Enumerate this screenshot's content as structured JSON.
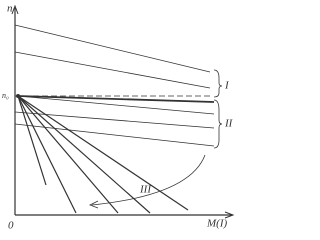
{
  "axis": {
    "y_label": "n",
    "x_label": "M(I)",
    "origin": "0",
    "n0_label": "n₀"
  },
  "groups": [
    "I",
    "II",
    "III"
  ]
}
